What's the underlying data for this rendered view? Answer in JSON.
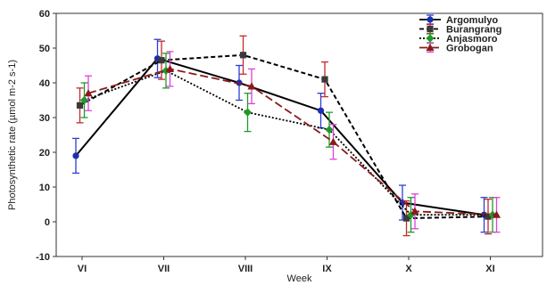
{
  "chart_data": {
    "type": "line",
    "title": "",
    "xlabel": "Week",
    "ylabel": "Photosynthetic rate (µmol m-2 s-1)",
    "categories": [
      "VI",
      "VII",
      "VIII",
      "IX",
      "X",
      "XI"
    ],
    "ylim": [
      -10,
      60
    ],
    "yticks": [
      -10,
      0,
      10,
      20,
      30,
      40,
      50,
      60
    ],
    "grid": false,
    "legend_position": "top-right",
    "series": [
      {
        "name": "Argomulyo",
        "values": [
          19,
          47,
          40,
          32,
          5.5,
          2
        ],
        "errors": [
          5,
          5.5,
          5,
          5,
          5,
          5
        ],
        "error_color": "#2a3fd6",
        "marker_color": "#1b2fb0",
        "line_color": "#000000",
        "dash": "solid",
        "marker": "circle"
      },
      {
        "name": "Burangrang",
        "values": [
          33.5,
          46.5,
          48,
          41,
          1,
          1.5
        ],
        "errors": [
          5,
          5.5,
          5.5,
          5,
          5,
          5
        ],
        "error_color": "#c42a2a",
        "marker_color": "#3a3a3a",
        "line_color": "#000000",
        "dash": "dashed",
        "marker": "square"
      },
      {
        "name": "Anjasmoro",
        "values": [
          35,
          43.5,
          31.5,
          26.5,
          2,
          2
        ],
        "errors": [
          5,
          5,
          5.5,
          5,
          5,
          5
        ],
        "error_color": "#1e9a2a",
        "marker_color": "#1e9a2a",
        "line_color": "#000000",
        "dash": "dotted",
        "marker": "diamond"
      },
      {
        "name": "Grobogan",
        "values": [
          37,
          44,
          39,
          23,
          3,
          2
        ],
        "errors": [
          5,
          5,
          5,
          5,
          5,
          5
        ],
        "error_color": "#e040d8",
        "marker_color": "#8a1a1a",
        "line_color": "#8a1a1a",
        "dash": "longdash",
        "marker": "triangle"
      }
    ]
  }
}
